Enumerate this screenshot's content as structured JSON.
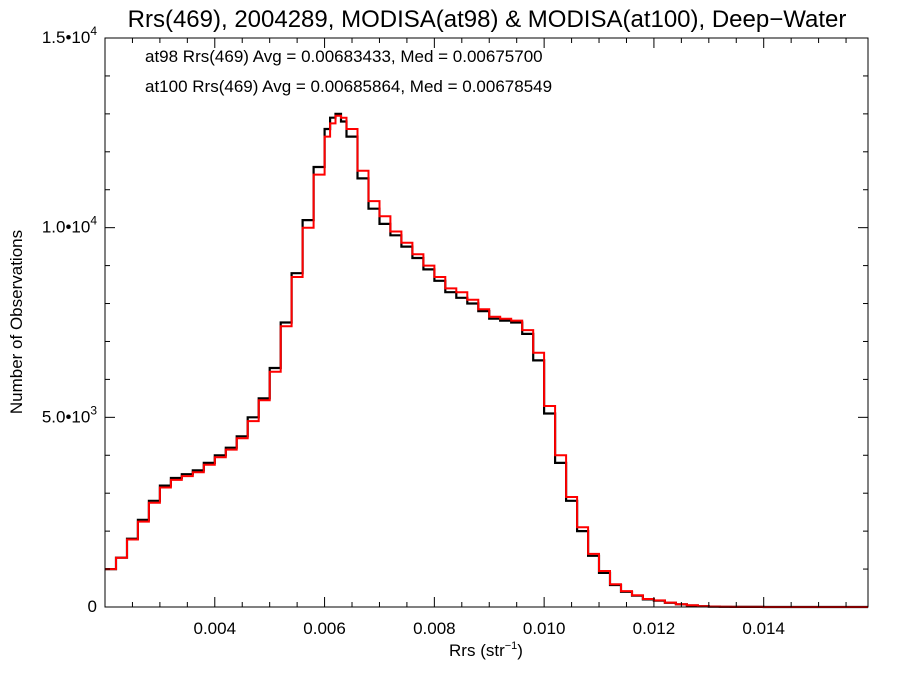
{
  "chart_data": {
    "type": "line",
    "title": "Rrs(469), 2004289, MODISA(at98) & MODISA(at100), Deep−Water",
    "xlabel": "Rrs (str",
    "xlabel_sup": "−1",
    "xlabel_close": ")",
    "ylabel": "Number of Observations",
    "xlim": [
      0.002,
      0.0159
    ],
    "ylim": [
      0,
      15000
    ],
    "x_ticks": [
      {
        "value": 0.004,
        "label": "0.004"
      },
      {
        "value": 0.006,
        "label": "0.006"
      },
      {
        "value": 0.008,
        "label": "0.008"
      },
      {
        "value": 0.01,
        "label": "0.010"
      },
      {
        "value": 0.012,
        "label": "0.012"
      },
      {
        "value": 0.014,
        "label": "0.014"
      }
    ],
    "y_ticks": [
      {
        "value": 0,
        "label": "0",
        "sup": ""
      },
      {
        "value": 5000,
        "label": "5.0•10",
        "sup": "3"
      },
      {
        "value": 10000,
        "label": "1.0•10",
        "sup": "4"
      },
      {
        "value": 15000,
        "label": "1.5•10",
        "sup": "4"
      }
    ],
    "annotations": [
      {
        "text": "at98 Rrs(469) Avg = 0.00683433, Med = 0.00675700",
        "color": "#000000"
      },
      {
        "text": "at100 Rrs(469) Avg = 0.00685864, Med = 0.00678549",
        "color": "#ff0000"
      }
    ],
    "series": [
      {
        "name": "at98",
        "color": "#000000",
        "x": [
          0.002,
          0.0022,
          0.0024,
          0.0026,
          0.0028,
          0.003,
          0.0032,
          0.0034,
          0.0036,
          0.0038,
          0.004,
          0.0042,
          0.0044,
          0.0046,
          0.0048,
          0.005,
          0.0052,
          0.0054,
          0.0056,
          0.0058,
          0.006,
          0.0061,
          0.0062,
          0.0063,
          0.0064,
          0.0066,
          0.0068,
          0.007,
          0.0072,
          0.0074,
          0.0076,
          0.0078,
          0.008,
          0.0082,
          0.0084,
          0.0086,
          0.0088,
          0.009,
          0.0092,
          0.0094,
          0.0096,
          0.0098,
          0.01,
          0.0102,
          0.0104,
          0.0106,
          0.0108,
          0.011,
          0.0112,
          0.0114,
          0.0116,
          0.0118,
          0.012,
          0.0122,
          0.0124,
          0.0126,
          0.0128,
          0.013,
          0.0132,
          0.0134,
          0.0136,
          0.014,
          0.0145,
          0.015,
          0.0159
        ],
        "y": [
          1000,
          1300,
          1800,
          2300,
          2800,
          3200,
          3400,
          3500,
          3600,
          3800,
          4000,
          4200,
          4500,
          5000,
          5500,
          6300,
          7500,
          8800,
          10200,
          11600,
          12600,
          12900,
          13000,
          12800,
          12400,
          11300,
          10500,
          10100,
          9800,
          9500,
          9200,
          8900,
          8600,
          8300,
          8150,
          8000,
          7800,
          7600,
          7550,
          7500,
          7200,
          6500,
          5100,
          3800,
          2800,
          2000,
          1350,
          900,
          580,
          400,
          300,
          200,
          170,
          110,
          70,
          40,
          20,
          10,
          5,
          3,
          2,
          1,
          0,
          0,
          0
        ]
      },
      {
        "name": "at100",
        "color": "#ff0000",
        "x": [
          0.002,
          0.0022,
          0.0024,
          0.0026,
          0.0028,
          0.003,
          0.0032,
          0.0034,
          0.0036,
          0.0038,
          0.004,
          0.0042,
          0.0044,
          0.0046,
          0.0048,
          0.005,
          0.0052,
          0.0054,
          0.0056,
          0.0058,
          0.006,
          0.0061,
          0.0062,
          0.0063,
          0.0064,
          0.0066,
          0.0068,
          0.007,
          0.0072,
          0.0074,
          0.0076,
          0.0078,
          0.008,
          0.0082,
          0.0084,
          0.0086,
          0.0088,
          0.009,
          0.0092,
          0.0094,
          0.0096,
          0.0098,
          0.01,
          0.0102,
          0.0104,
          0.0106,
          0.0108,
          0.011,
          0.0112,
          0.0114,
          0.0116,
          0.0118,
          0.012,
          0.0122,
          0.0124,
          0.0126,
          0.0128,
          0.013,
          0.0132,
          0.0134,
          0.0136,
          0.014,
          0.0145,
          0.015,
          0.0159
        ],
        "y": [
          1000,
          1300,
          1780,
          2250,
          2750,
          3150,
          3350,
          3450,
          3550,
          3750,
          3950,
          4150,
          4450,
          4900,
          5450,
          6200,
          7400,
          8700,
          10000,
          11400,
          12400,
          12750,
          12950,
          12900,
          12600,
          11500,
          10700,
          10300,
          9900,
          9600,
          9300,
          9000,
          8700,
          8400,
          8300,
          8100,
          7850,
          7650,
          7600,
          7550,
          7300,
          6700,
          5300,
          4000,
          2900,
          2100,
          1400,
          950,
          600,
          420,
          310,
          210,
          175,
          115,
          75,
          45,
          22,
          10,
          5,
          3,
          2,
          1,
          0,
          0,
          0
        ]
      }
    ],
    "legend": "top-left",
    "grid": false
  }
}
